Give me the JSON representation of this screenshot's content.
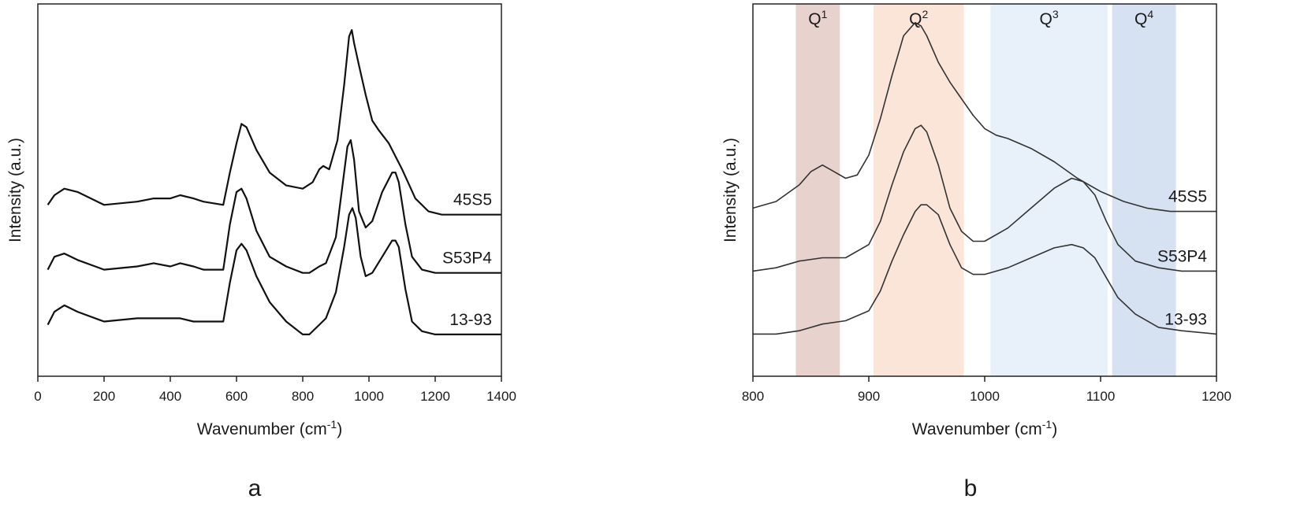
{
  "chart_data": [
    {
      "type": "line",
      "panel_label": "a",
      "xlabel": "Wavenumber (cm",
      "xlabel_sup": "-1",
      "xlabel_close": ")",
      "ylabel": "Intensity (a.u.)",
      "xlim": [
        0,
        1400
      ],
      "ylim": [
        0,
        1
      ],
      "xticks": [
        0,
        200,
        400,
        600,
        800,
        1000,
        1200,
        1400
      ],
      "yticks_shown": false,
      "grid": false,
      "legend": "inline labels at right end of each curve",
      "series": [
        {
          "name": "45S5",
          "x": [
            30,
            50,
            80,
            120,
            200,
            300,
            350,
            400,
            430,
            470,
            500,
            560,
            580,
            600,
            615,
            630,
            660,
            700,
            750,
            800,
            830,
            850,
            862,
            880,
            905,
            925,
            940,
            948,
            955,
            970,
            990,
            1010,
            1030,
            1060,
            1100,
            1140,
            1180,
            1220,
            1300,
            1400
          ],
          "y": [
            0.46,
            0.49,
            0.51,
            0.5,
            0.46,
            0.47,
            0.48,
            0.48,
            0.49,
            0.48,
            0.47,
            0.46,
            0.56,
            0.65,
            0.71,
            0.7,
            0.63,
            0.56,
            0.52,
            0.51,
            0.53,
            0.57,
            0.58,
            0.57,
            0.66,
            0.83,
            0.98,
            1.0,
            0.96,
            0.89,
            0.8,
            0.72,
            0.69,
            0.65,
            0.57,
            0.48,
            0.44,
            0.43,
            0.43,
            0.43
          ]
        },
        {
          "name": "S53P4",
          "x": [
            30,
            50,
            80,
            120,
            200,
            300,
            350,
            400,
            430,
            470,
            500,
            560,
            580,
            600,
            615,
            630,
            660,
            700,
            750,
            800,
            820,
            850,
            870,
            900,
            920,
            935,
            945,
            955,
            970,
            990,
            1010,
            1040,
            1070,
            1080,
            1090,
            1110,
            1130,
            1160,
            1200,
            1300,
            1400
          ],
          "y": [
            0.26,
            0.3,
            0.31,
            0.29,
            0.26,
            0.27,
            0.28,
            0.27,
            0.28,
            0.27,
            0.26,
            0.26,
            0.4,
            0.5,
            0.51,
            0.48,
            0.38,
            0.3,
            0.27,
            0.25,
            0.25,
            0.27,
            0.28,
            0.36,
            0.52,
            0.64,
            0.66,
            0.6,
            0.44,
            0.39,
            0.41,
            0.5,
            0.56,
            0.56,
            0.53,
            0.4,
            0.3,
            0.26,
            0.25,
            0.25,
            0.25
          ]
        },
        {
          "name": "13-93",
          "x": [
            30,
            50,
            80,
            120,
            200,
            300,
            350,
            400,
            430,
            470,
            500,
            560,
            580,
            600,
            615,
            630,
            660,
            700,
            750,
            800,
            820,
            850,
            870,
            900,
            925,
            940,
            950,
            960,
            975,
            990,
            1010,
            1040,
            1070,
            1080,
            1090,
            1110,
            1130,
            1160,
            1200,
            1300,
            1400
          ],
          "y": [
            0.09,
            0.13,
            0.15,
            0.13,
            0.1,
            0.11,
            0.11,
            0.11,
            0.11,
            0.1,
            0.1,
            0.1,
            0.22,
            0.32,
            0.34,
            0.32,
            0.24,
            0.16,
            0.1,
            0.06,
            0.06,
            0.09,
            0.11,
            0.19,
            0.33,
            0.43,
            0.45,
            0.42,
            0.3,
            0.24,
            0.25,
            0.3,
            0.35,
            0.35,
            0.33,
            0.2,
            0.1,
            0.07,
            0.06,
            0.06,
            0.06
          ]
        }
      ]
    },
    {
      "type": "line",
      "panel_label": "b",
      "xlabel": "Wavenumber (cm",
      "xlabel_sup": "-1",
      "xlabel_close": ")",
      "ylabel": "Intensity (a.u.)",
      "xlim": [
        800,
        1200
      ],
      "ylim": [
        0,
        1
      ],
      "xticks": [
        800,
        900,
        1000,
        1100,
        1200
      ],
      "yticks_shown": false,
      "grid": false,
      "legend": "inline labels at right end of each curve",
      "bands": [
        {
          "label": "Q",
          "sup": "1",
          "x0": 837,
          "x1": 875,
          "color": "#e8d2ce"
        },
        {
          "label": "Q",
          "sup": "2",
          "x0": 904,
          "x1": 982,
          "color": "#fbe5d8"
        },
        {
          "label": "Q",
          "sup": "3",
          "x0": 1005,
          "x1": 1106,
          "color": "#e8f0f9"
        },
        {
          "label": "Q",
          "sup": "4",
          "x0": 1110,
          "x1": 1165,
          "color": "#d6e2f1"
        }
      ],
      "series": [
        {
          "name": "45S5",
          "x": [
            800,
            820,
            840,
            850,
            860,
            870,
            880,
            890,
            900,
            910,
            920,
            930,
            940,
            945,
            950,
            960,
            970,
            980,
            990,
            1000,
            1010,
            1020,
            1040,
            1060,
            1080,
            1100,
            1120,
            1140,
            1160,
            1180,
            1200
          ],
          "y": [
            0.44,
            0.46,
            0.51,
            0.55,
            0.57,
            0.55,
            0.53,
            0.54,
            0.6,
            0.71,
            0.84,
            0.96,
            1.0,
            0.99,
            0.96,
            0.88,
            0.82,
            0.77,
            0.72,
            0.68,
            0.66,
            0.65,
            0.62,
            0.58,
            0.53,
            0.49,
            0.46,
            0.44,
            0.43,
            0.43,
            0.43
          ]
        },
        {
          "name": "S53P4",
          "x": [
            800,
            820,
            840,
            860,
            880,
            900,
            910,
            920,
            930,
            940,
            945,
            950,
            960,
            970,
            980,
            990,
            1000,
            1020,
            1040,
            1060,
            1075,
            1085,
            1095,
            1105,
            1115,
            1130,
            1150,
            1170,
            1200
          ],
          "y": [
            0.25,
            0.26,
            0.28,
            0.29,
            0.29,
            0.33,
            0.4,
            0.51,
            0.61,
            0.68,
            0.69,
            0.67,
            0.57,
            0.44,
            0.37,
            0.34,
            0.34,
            0.38,
            0.44,
            0.5,
            0.53,
            0.52,
            0.48,
            0.4,
            0.33,
            0.28,
            0.26,
            0.25,
            0.25
          ]
        },
        {
          "name": "13-93",
          "x": [
            800,
            820,
            840,
            860,
            880,
            900,
            910,
            920,
            930,
            940,
            945,
            950,
            960,
            970,
            980,
            990,
            1000,
            1020,
            1040,
            1060,
            1075,
            1085,
            1095,
            1105,
            1115,
            1130,
            1150,
            1170,
            1200
          ],
          "y": [
            0.06,
            0.06,
            0.07,
            0.09,
            0.1,
            0.13,
            0.19,
            0.28,
            0.36,
            0.43,
            0.45,
            0.45,
            0.42,
            0.33,
            0.26,
            0.24,
            0.24,
            0.26,
            0.29,
            0.32,
            0.33,
            0.32,
            0.29,
            0.23,
            0.17,
            0.12,
            0.08,
            0.07,
            0.06
          ]
        }
      ]
    }
  ]
}
